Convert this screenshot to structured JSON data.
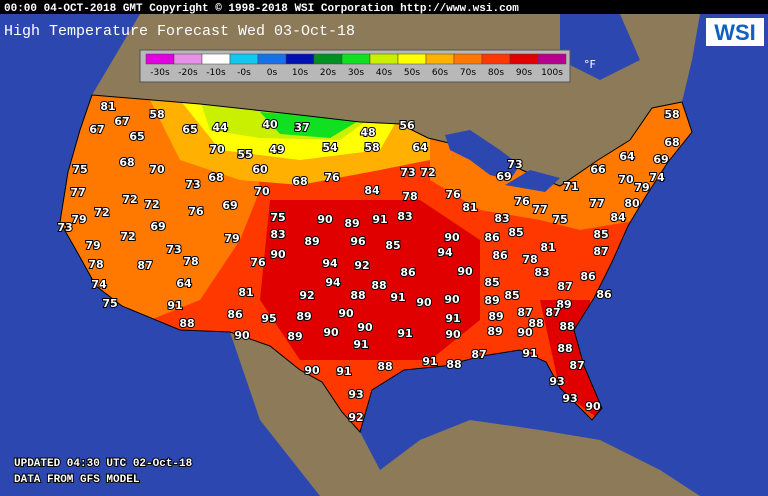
{
  "header": {
    "timestamp": "00:00 04-OCT-2018 GMT Copyright © 1998-2018 WSI Corporation  http://www.wsi.com"
  },
  "title": "High Temperature Forecast  Wed 03-Oct-18",
  "logo": "WSI",
  "legend": {
    "unit": "°F",
    "items": [
      {
        "label": "-30s",
        "color": "#e000e0"
      },
      {
        "label": "-20s",
        "color": "#e890e8"
      },
      {
        "label": "-10s",
        "color": "#ffffff"
      },
      {
        "label": "-0s",
        "color": "#10c8f0"
      },
      {
        "label": "0s",
        "color": "#1870e8"
      },
      {
        "label": "10s",
        "color": "#0010b0"
      },
      {
        "label": "20s",
        "color": "#009020"
      },
      {
        "label": "30s",
        "color": "#10e020"
      },
      {
        "label": "40s",
        "color": "#c8f000"
      },
      {
        "label": "50s",
        "color": "#ffff00"
      },
      {
        "label": "60s",
        "color": "#ffb000"
      },
      {
        "label": "70s",
        "color": "#ff7800"
      },
      {
        "label": "80s",
        "color": "#ff3800"
      },
      {
        "label": "90s",
        "color": "#e00000"
      },
      {
        "label": "100s",
        "color": "#b80090"
      }
    ]
  },
  "temperatures": [
    81,
    58,
    67,
    67,
    65,
    65,
    44,
    40,
    37,
    48,
    56,
    58,
    68,
    70,
    55,
    49,
    54,
    58,
    64,
    64,
    69,
    68,
    70,
    60,
    73,
    73,
    72,
    69,
    66,
    75,
    73,
    68,
    68,
    76,
    70,
    74,
    79,
    71,
    84,
    78,
    76,
    77,
    72,
    72,
    70,
    76,
    77,
    77,
    80,
    69,
    76,
    81,
    72,
    79,
    73,
    75,
    90,
    89,
    91,
    83,
    75,
    84,
    69,
    83,
    72,
    79,
    83,
    89,
    96,
    85,
    90,
    86,
    85,
    85,
    79,
    73,
    81,
    87,
    90,
    94,
    86,
    78,
    78,
    76,
    94,
    92,
    78,
    87,
    86,
    90,
    83,
    86,
    64,
    74,
    94,
    88,
    85,
    87,
    81,
    92,
    88,
    91,
    90,
    90,
    89,
    85,
    86,
    75,
    91,
    89,
    86,
    95,
    89,
    90,
    91,
    89,
    87,
    87,
    88,
    90,
    88,
    88,
    90,
    89,
    90,
    91,
    90,
    89,
    90,
    91,
    87,
    91,
    88,
    91,
    88,
    87,
    90,
    91,
    88,
    93,
    93,
    93,
    90,
    92
  ],
  "footer": {
    "updated": "UPDATED 04:30 UTC 02-Oct-18",
    "source": "DATA FROM GFS MODEL"
  }
}
